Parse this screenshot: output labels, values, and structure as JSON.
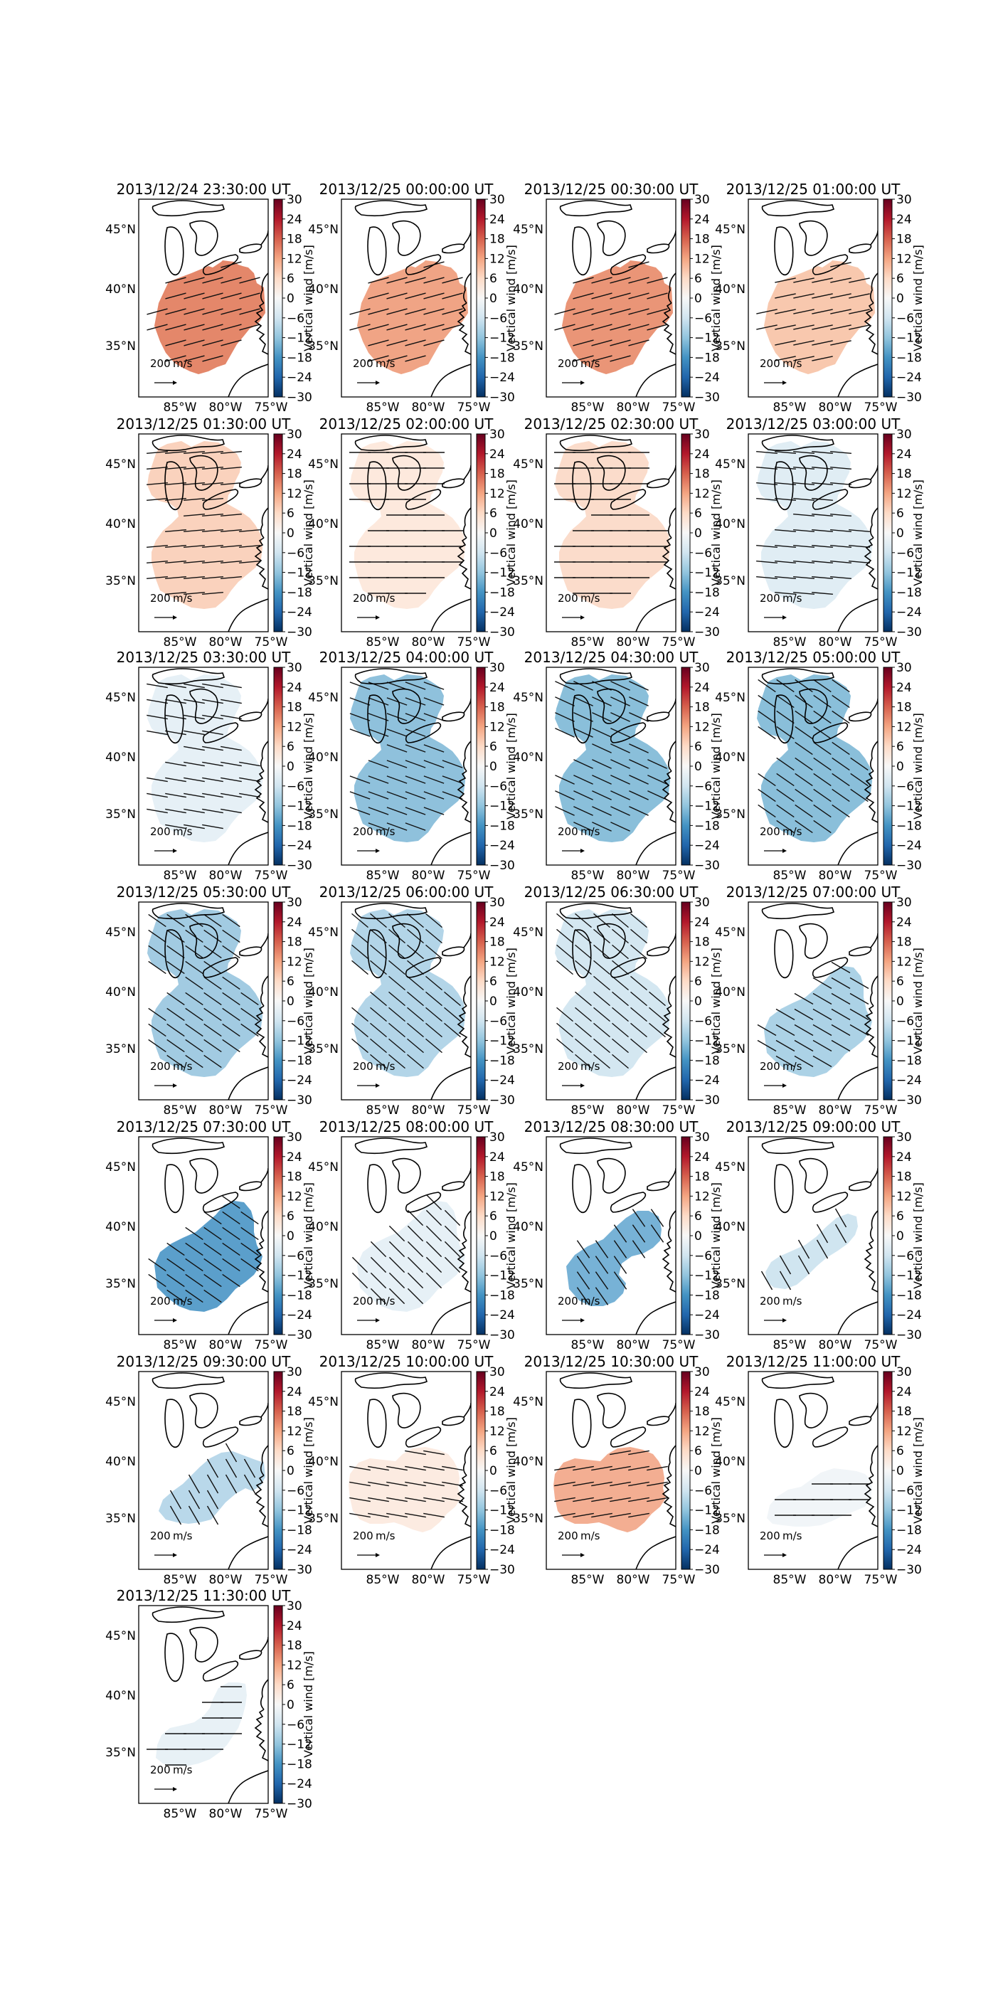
{
  "figure": {
    "colorbar": {
      "label": "Vertical wind [m/s]",
      "ticks": [
        "30",
        "24",
        "18",
        "12",
        "6",
        "0",
        "−6",
        "−12",
        "−18",
        "−24",
        "−30"
      ],
      "colors": [
        "#67001f",
        "#b2182b",
        "#d6604d",
        "#f4a582",
        "#fddbc7",
        "#f7f7f7",
        "#d1e5f0",
        "#92c5de",
        "#4393c3",
        "#2166ac",
        "#053061"
      ]
    },
    "axes": {
      "lon_labels": [
        "85°W",
        "80°W",
        "75°W"
      ],
      "lat_labels": [
        "45°N",
        "40°N",
        "35°N"
      ]
    },
    "scale_label": "200",
    "scale_unit": "m/s",
    "land_color": "#ffffff",
    "coast_color": "#000000",
    "panels": [
      {
        "title": "2013/12/24 23:30:00 UT",
        "shape": "A",
        "fill": "#e4876a",
        "opacity": 1.0,
        "vector_angle": -15
      },
      {
        "title": "2013/12/25 00:00:00 UT",
        "shape": "A",
        "fill": "#f0a485",
        "opacity": 1.0,
        "vector_angle": -15
      },
      {
        "title": "2013/12/25 00:30:00 UT",
        "shape": "A",
        "fill": "#ea9577",
        "opacity": 1.0,
        "vector_angle": -15
      },
      {
        "title": "2013/12/25 01:00:00 UT",
        "shape": "A",
        "fill": "#f8c8ae",
        "opacity": 1.0,
        "vector_angle": -12
      },
      {
        "title": "2013/12/25 01:30:00 UT",
        "shape": "B",
        "fill": "#fad2bd",
        "opacity": 1.0,
        "vector_angle": -5
      },
      {
        "title": "2013/12/25 02:00:00 UT",
        "shape": "B",
        "fill": "#fde9dd",
        "opacity": 1.0,
        "vector_angle": 0
      },
      {
        "title": "2013/12/25 02:30:00 UT",
        "shape": "B",
        "fill": "#fbdccb",
        "opacity": 1.0,
        "vector_angle": 0
      },
      {
        "title": "2013/12/25 03:00:00 UT",
        "shape": "B",
        "fill": "#e0edf4",
        "opacity": 1.0,
        "vector_angle": 5
      },
      {
        "title": "2013/12/25 03:30:00 UT",
        "shape": "B",
        "fill": "#e6f0f6",
        "opacity": 1.0,
        "vector_angle": 10
      },
      {
        "title": "2013/12/25 04:00:00 UT",
        "shape": "B",
        "fill": "#8fc1dc",
        "opacity": 1.0,
        "vector_angle": 20
      },
      {
        "title": "2013/12/25 04:30:00 UT",
        "shape": "B",
        "fill": "#8abfda",
        "opacity": 1.0,
        "vector_angle": 25
      },
      {
        "title": "2013/12/25 05:00:00 UT",
        "shape": "B",
        "fill": "#8abfda",
        "opacity": 1.0,
        "vector_angle": 35
      },
      {
        "title": "2013/12/25 05:30:00 UT",
        "shape": "B",
        "fill": "#a2cbe2",
        "opacity": 1.0,
        "vector_angle": 35
      },
      {
        "title": "2013/12/25 06:00:00 UT",
        "shape": "B",
        "fill": "#b3d5e8",
        "opacity": 1.0,
        "vector_angle": 40
      },
      {
        "title": "2013/12/25 06:30:00 UT",
        "shape": "B",
        "fill": "#d4e7f1",
        "opacity": 1.0,
        "vector_angle": 40
      },
      {
        "title": "2013/12/25 07:00:00 UT",
        "shape": "C",
        "fill": "#acd2e6",
        "opacity": 1.0,
        "vector_angle": 30
      },
      {
        "title": "2013/12/25 07:30:00 UT",
        "shape": "C",
        "fill": "#5b9fcb",
        "opacity": 1.0,
        "vector_angle": 35
      },
      {
        "title": "2013/12/25 08:00:00 UT",
        "shape": "C",
        "fill": "#e6f0f6",
        "opacity": 1.0,
        "vector_angle": 45
      },
      {
        "title": "2013/12/25 08:30:00 UT",
        "shape": "D",
        "fill": "#77b2d6",
        "opacity": 1.0,
        "vector_angle": 55
      },
      {
        "title": "2013/12/25 09:00:00 UT",
        "shape": "E",
        "fill": "#d0e5f0",
        "opacity": 1.0,
        "vector_angle": 60
      },
      {
        "title": "2013/12/25 09:30:00 UT",
        "shape": "F",
        "fill": "#b9d8ea",
        "opacity": 1.0,
        "vector_angle": 60
      },
      {
        "title": "2013/12/25 10:00:00 UT",
        "shape": "G",
        "fill": "#fcebe1",
        "opacity": 1.0,
        "vector_angle": 10
      },
      {
        "title": "2013/12/25 10:30:00 UT",
        "shape": "G",
        "fill": "#f3ae92",
        "opacity": 1.0,
        "vector_angle": -10
      },
      {
        "title": "2013/12/25 11:00:00 UT",
        "shape": "H",
        "fill": "#f1f5f8",
        "opacity": 1.0,
        "vector_angle": 0
      },
      {
        "title": "2013/12/25 11:30:00 UT",
        "shape": "I",
        "fill": "#e8f1f6",
        "opacity": 1.0,
        "vector_angle": 0
      }
    ]
  }
}
